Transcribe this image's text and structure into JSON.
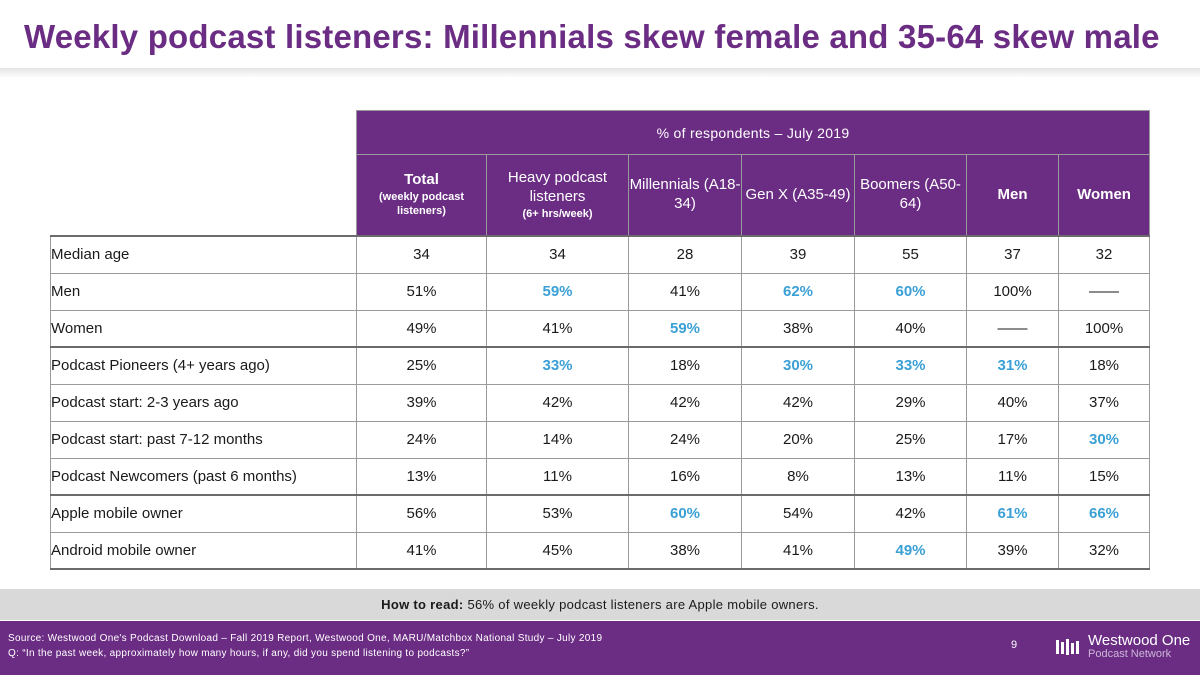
{
  "title": "Weekly podcast listeners: Millennials skew female and 35-64 skew male",
  "table": {
    "super_header": "% of respondents – July 2019",
    "columns": [
      {
        "main": "Total",
        "sub": "(weekly podcast listeners)"
      },
      {
        "main": "Heavy podcast listeners",
        "sub": "(6+ hrs/week)"
      },
      {
        "main": "Millennials (A18-34)",
        "sub": ""
      },
      {
        "main": "Gen X (A35-49)",
        "sub": ""
      },
      {
        "main": "Boomers (A50-64)",
        "sub": ""
      },
      {
        "main": "Men",
        "sub": ""
      },
      {
        "main": "Women",
        "sub": ""
      }
    ],
    "rows": [
      {
        "label": "Median age",
        "values": [
          "34",
          "34",
          "28",
          "39",
          "55",
          "37",
          "32"
        ]
      },
      {
        "label": "Men",
        "values": [
          "51%",
          "59%",
          "41%",
          "62%",
          "60%",
          "100%",
          "——"
        ]
      },
      {
        "label": "Women",
        "values": [
          "49%",
          "41%",
          "59%",
          "38%",
          "40%",
          "——",
          "100%"
        ]
      },
      {
        "label": "Podcast Pioneers (4+ years ago)",
        "values": [
          "25%",
          "33%",
          "18%",
          "30%",
          "33%",
          "31%",
          "18%"
        ]
      },
      {
        "label": "Podcast start: 2-3 years ago",
        "values": [
          "39%",
          "42%",
          "42%",
          "42%",
          "29%",
          "40%",
          "37%"
        ]
      },
      {
        "label": "Podcast start: past 7-12 months",
        "values": [
          "24%",
          "14%",
          "24%",
          "20%",
          "25%",
          "17%",
          "30%"
        ]
      },
      {
        "label": "Podcast Newcomers (past 6 months)",
        "values": [
          "13%",
          "11%",
          "16%",
          "8%",
          "13%",
          "11%",
          "15%"
        ]
      },
      {
        "label": "Apple mobile owner",
        "values": [
          "56%",
          "53%",
          "60%",
          "54%",
          "42%",
          "61%",
          "66%"
        ]
      },
      {
        "label": "Android mobile owner",
        "values": [
          "41%",
          "45%",
          "38%",
          "41%",
          "49%",
          "39%",
          "32%"
        ]
      }
    ]
  },
  "how_to_read": {
    "label": "How to read:",
    "text": "56% of weekly podcast listeners are Apple mobile owners."
  },
  "footer": {
    "source": "Source: Westwood One's Podcast Download – Fall 2019 Report, Westwood One, MARU/Matchbox National Study – July 2019",
    "question": "Q: “In the past week, approximately how many hours, if any, did you spend listening to podcasts?”",
    "page_number": "9",
    "logo_line1": "Westwood One",
    "logo_line2": "Podcast Network"
  },
  "colors": {
    "brand_purple": "#6b2c83",
    "highlight_blue": "#3aa0d6",
    "howto_gray": "#d9d9d9"
  }
}
